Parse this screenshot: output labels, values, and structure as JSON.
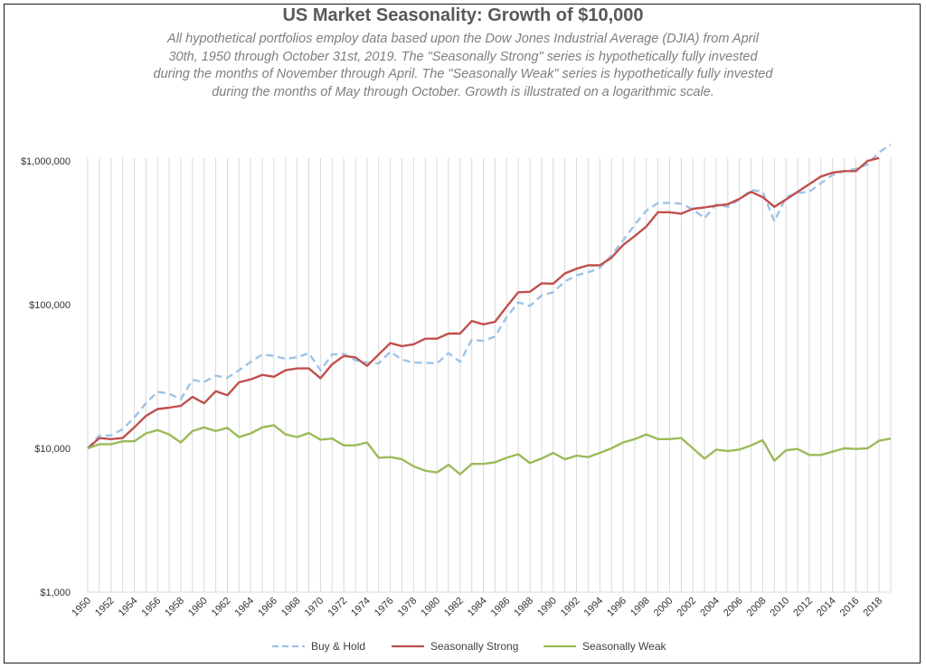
{
  "chart_data": {
    "type": "line",
    "title": "US Market Seasonality:  Growth of $10,000",
    "subtitle_lines": [
      "All hypothetical portfolios employ data based upon the Dow Jones Industrial Average (DJIA) from April",
      "30th, 1950 through October 31st, 2019. The \"Seasonally Strong\" series is hypothetically fully invested",
      "during the months of November through April. The \"Seasonally Weak\" series is hypothetically fully invested",
      "during the months of May through October. Growth is illustrated on a logarithmic scale."
    ],
    "y_scale": "log",
    "ylim": [
      1000,
      1300000
    ],
    "y_ticks": [
      {
        "value": 1000000,
        "label": "$1,000,000"
      },
      {
        "value": 100000,
        "label": "$100,000"
      },
      {
        "value": 10000,
        "label": "$10,000"
      },
      {
        "value": 1000,
        "label": "$1,000"
      }
    ],
    "x_tick_labels": [
      "1950",
      "1952",
      "1954",
      "1956",
      "1958",
      "1960",
      "1962",
      "1964",
      "1966",
      "1968",
      "1970",
      "1972",
      "1974",
      "1976",
      "1978",
      "1980",
      "1982",
      "1984",
      "1986",
      "1988",
      "1990",
      "1992",
      "1994",
      "1996",
      "1998",
      "2000",
      "2002",
      "2004",
      "2006",
      "2008",
      "2010",
      "2012",
      "2014",
      "2016",
      "2018"
    ],
    "x": [
      1950,
      1951,
      1952,
      1953,
      1954,
      1955,
      1956,
      1957,
      1958,
      1959,
      1960,
      1961,
      1962,
      1963,
      1964,
      1965,
      1966,
      1967,
      1968,
      1969,
      1970,
      1971,
      1972,
      1973,
      1974,
      1975,
      1976,
      1977,
      1978,
      1979,
      1980,
      1981,
      1982,
      1983,
      1984,
      1985,
      1986,
      1987,
      1988,
      1989,
      1990,
      1991,
      1992,
      1993,
      1994,
      1995,
      1996,
      1997,
      1998,
      1999,
      2000,
      2001,
      2002,
      2003,
      2004,
      2005,
      2006,
      2007,
      2008,
      2009,
      2010,
      2011,
      2012,
      2013,
      2014,
      2015,
      2016,
      2017,
      2018,
      2019
    ],
    "grid": "vertical",
    "legend_position": "bottom",
    "series": [
      {
        "name": "Buy & Hold",
        "color": "#9dc3e6",
        "style": "dashed",
        "values": [
          10000,
          12300,
          12300,
          13600,
          16400,
          20600,
          24800,
          24000,
          22000,
          30000,
          29000,
          32000,
          31000,
          35000,
          40000,
          45000,
          44000,
          42000,
          43000,
          46000,
          35000,
          45000,
          45500,
          41000,
          39500,
          39000,
          47000,
          41500,
          39500,
          39500,
          39000,
          46000,
          40000,
          57000,
          56000,
          60000,
          82000,
          104000,
          98000,
          116000,
          122000,
          145000,
          160000,
          168000,
          180000,
          220000,
          280000,
          360000,
          450000,
          510000,
          510000,
          505000,
          460000,
          400000,
          500000,
          480000,
          540000,
          630000,
          610000,
          380000,
          560000,
          600000,
          610000,
          700000,
          800000,
          850000,
          880000,
          950000,
          1150000,
          1300000
        ]
      },
      {
        "name": "Seasonally Strong",
        "color": "#c0504d",
        "style": "solid",
        "values": [
          10000,
          11800,
          11600,
          11800,
          14000,
          16800,
          18800,
          19200,
          19800,
          22800,
          20600,
          25000,
          23400,
          28800,
          30200,
          32500,
          31500,
          35000,
          36000,
          36000,
          30800,
          38500,
          44000,
          43000,
          37500,
          45000,
          54000,
          51500,
          53000,
          58000,
          58000,
          63000,
          63000,
          77000,
          73000,
          76000,
          97000,
          122000,
          123000,
          141000,
          140000,
          165000,
          178000,
          188000,
          188000,
          212000,
          260000,
          300000,
          350000,
          440000,
          440000,
          430000,
          465000,
          475000,
          490000,
          500000,
          545000,
          610000,
          560000,
          480000,
          540000,
          610000,
          690000,
          780000,
          830000,
          850000,
          850000,
          1000000,
          1050000,
          null
        ]
      },
      {
        "name": "Seasonally Weak",
        "color": "#9bbb59",
        "style": "solid",
        "values": [
          10000,
          10700,
          10700,
          11200,
          11200,
          12700,
          13400,
          12500,
          11000,
          13200,
          14000,
          13200,
          13900,
          12000,
          12700,
          14000,
          14500,
          12500,
          12000,
          12800,
          11500,
          11700,
          10500,
          10500,
          11000,
          8600,
          8700,
          8400,
          7500,
          7000,
          6800,
          7700,
          6600,
          7800,
          7800,
          8000,
          8600,
          9100,
          7900,
          8500,
          9300,
          8400,
          8900,
          8700,
          9300,
          10000,
          11000,
          11600,
          12500,
          11600,
          11600,
          11800,
          10000,
          8500,
          9800,
          9600,
          9800,
          10500,
          11400,
          8200,
          9700,
          9900,
          9000,
          9000,
          9500,
          10000,
          9900,
          10000,
          11300,
          11700
        ]
      }
    ]
  },
  "legend": {
    "items": [
      {
        "label": "Buy & Hold"
      },
      {
        "label": "Seasonally Strong"
      },
      {
        "label": "Seasonally Weak"
      }
    ]
  }
}
